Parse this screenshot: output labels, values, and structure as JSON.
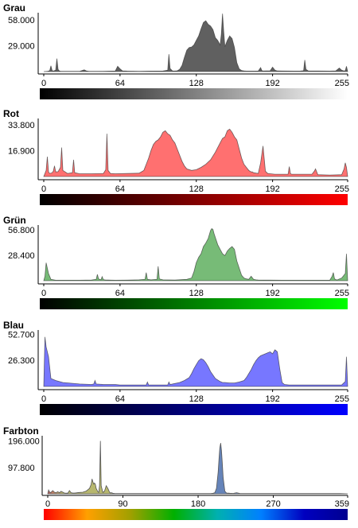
{
  "chart_data": [
    {
      "type": "area",
      "title": "Grau",
      "color": "#606060",
      "gradient": [
        "#000000",
        "#ffffff"
      ],
      "ylabels": [
        "58.000",
        "29.000"
      ],
      "yticks": [
        58000,
        29000
      ],
      "ylim": [
        0,
        66000
      ],
      "xlim": [
        0,
        255
      ],
      "xticks": [
        0,
        64,
        128,
        192,
        255
      ],
      "xtick_labels": [
        "0",
        "64",
        "128",
        "192",
        "255"
      ],
      "x": [
        0,
        3,
        5,
        6,
        7,
        8,
        10,
        11,
        12,
        13,
        14,
        16,
        20,
        30,
        34,
        36,
        38,
        40,
        44,
        50,
        60,
        62,
        64,
        66,
        70,
        80,
        90,
        100,
        104,
        105,
        106,
        108,
        110,
        112,
        114,
        116,
        118,
        120,
        122,
        124,
        126,
        128,
        130,
        132,
        134,
        136,
        138,
        140,
        142,
        144,
        146,
        148,
        149,
        150,
        151,
        152,
        154,
        156,
        158,
        160,
        162,
        164,
        166,
        168,
        170,
        176,
        180,
        182,
        183,
        184,
        190,
        192,
        194,
        196,
        200,
        210,
        215,
        218,
        219,
        220,
        222,
        230,
        240,
        245,
        248,
        250,
        252,
        253,
        254,
        255
      ],
      "values": [
        0,
        300,
        1000,
        6500,
        1200,
        500,
        1500,
        14500,
        2500,
        800,
        400,
        300,
        300,
        300,
        2000,
        600,
        300,
        300,
        300,
        400,
        600,
        6000,
        3000,
        800,
        500,
        400,
        500,
        600,
        1500,
        19500,
        3500,
        800,
        600,
        900,
        2500,
        7000,
        16000,
        24000,
        27000,
        27500,
        30000,
        35000,
        40000,
        48000,
        55000,
        57000,
        53000,
        51000,
        47000,
        38000,
        35000,
        30000,
        42000,
        65000,
        45000,
        28000,
        35000,
        40000,
        37000,
        27000,
        10000,
        3000,
        1200,
        700,
        500,
        500,
        600,
        4500,
        1200,
        600,
        900,
        5000,
        1500,
        700,
        600,
        500,
        500,
        1000,
        13000,
        2500,
        700,
        600,
        500,
        700,
        4000,
        1500,
        700,
        1000,
        6000,
        0
      ]
    },
    {
      "type": "area",
      "title": "Rot",
      "color": "#ff7070",
      "gradient": [
        "#000000",
        "#ff0000"
      ],
      "ylabels": [
        "33.800",
        "16.900"
      ],
      "yticks": [
        33800,
        16900
      ],
      "ylim": [
        0,
        38000
      ],
      "xlim": [
        0,
        255
      ],
      "xticks": [
        0,
        64,
        128,
        192,
        255
      ],
      "xtick_labels": [
        "0",
        "64",
        "128",
        "192",
        "255"
      ],
      "x": [
        0,
        2,
        3,
        4,
        5,
        7,
        8,
        9,
        10,
        12,
        14,
        15,
        16,
        20,
        24,
        25,
        26,
        30,
        40,
        50,
        52,
        53,
        54,
        56,
        60,
        70,
        80,
        84,
        86,
        88,
        90,
        92,
        94,
        96,
        98,
        100,
        102,
        104,
        106,
        108,
        110,
        112,
        114,
        116,
        118,
        120,
        124,
        128,
        132,
        136,
        140,
        144,
        148,
        150,
        152,
        154,
        156,
        158,
        160,
        162,
        164,
        166,
        168,
        170,
        172,
        174,
        175,
        176,
        180,
        182,
        184,
        186,
        188,
        190,
        194,
        200,
        205,
        206,
        207,
        208,
        215,
        225,
        227,
        228,
        230,
        240,
        250,
        252,
        253,
        254,
        255
      ],
      "values": [
        0,
        4000,
        13000,
        3000,
        2000,
        2500,
        3500,
        7000,
        3000,
        3200,
        6000,
        19000,
        4000,
        2000,
        2500,
        11000,
        2500,
        1800,
        1800,
        2000,
        4500,
        28000,
        4000,
        2000,
        1800,
        2000,
        2200,
        4000,
        8000,
        12000,
        17000,
        21000,
        23000,
        24000,
        26000,
        29000,
        30000,
        28000,
        27000,
        24000,
        22000,
        18000,
        14000,
        10000,
        7000,
        5000,
        4000,
        4500,
        6000,
        8000,
        11000,
        16000,
        22000,
        25000,
        26000,
        30000,
        31000,
        29000,
        26000,
        24000,
        18000,
        12000,
        8000,
        6000,
        4000,
        3000,
        3000,
        2500,
        2000,
        9000,
        20000,
        3500,
        2000,
        1800,
        1500,
        1500,
        1500,
        6500,
        1800,
        1500,
        1500,
        1500,
        3500,
        5000,
        1200,
        1000,
        1200,
        5000,
        9000,
        6000,
        0
      ]
    },
    {
      "type": "area",
      "title": "Grün",
      "color": "#77bb77",
      "gradient": [
        "#000000",
        "#00ff00"
      ],
      "ylabels": [
        "56.800",
        "28.400"
      ],
      "yticks": [
        56800,
        28400
      ],
      "ylim": [
        0,
        62000
      ],
      "xlim": [
        0,
        255
      ],
      "xticks": [
        0,
        64,
        128,
        192,
        255
      ],
      "xtick_labels": [
        "0",
        "64",
        "128",
        "192",
        "255"
      ],
      "x": [
        0,
        1,
        2,
        4,
        6,
        10,
        20,
        30,
        40,
        44,
        45,
        46,
        48,
        49,
        50,
        52,
        54,
        56,
        60,
        70,
        80,
        85,
        86,
        87,
        90,
        95,
        96,
        97,
        100,
        110,
        120,
        124,
        126,
        128,
        130,
        132,
        134,
        136,
        138,
        140,
        141,
        142,
        143,
        144,
        146,
        148,
        150,
        152,
        154,
        156,
        158,
        160,
        162,
        164,
        166,
        168,
        170,
        172,
        174,
        176,
        178,
        180,
        190,
        200,
        240,
        242,
        243,
        244,
        246,
        250,
        253,
        254,
        255
      ],
      "values": [
        0,
        5000,
        20000,
        8000,
        1500,
        500,
        500,
        500,
        800,
        1500,
        7000,
        2000,
        1000,
        4500,
        1200,
        800,
        700,
        600,
        500,
        600,
        1000,
        1500,
        9000,
        1500,
        1000,
        1500,
        16000,
        2000,
        1000,
        800,
        1500,
        3000,
        10000,
        20000,
        26000,
        30000,
        38000,
        42000,
        47000,
        56000,
        58000,
        57000,
        52000,
        48000,
        40000,
        35000,
        30000,
        28000,
        33000,
        36000,
        38000,
        35000,
        22000,
        14000,
        6000,
        3000,
        2000,
        1500,
        5000,
        1500,
        1000,
        800,
        600,
        500,
        500,
        5000,
        9000,
        2000,
        800,
        3000,
        8000,
        30000,
        0
      ]
    },
    {
      "type": "area",
      "title": "Blau",
      "color": "#7777ff",
      "gradient": [
        "#000000",
        "#0000ff"
      ],
      "ylabels": [
        "52.700",
        "26.300"
      ],
      "yticks": [
        52700,
        26300
      ],
      "ylim": [
        0,
        57000
      ],
      "xlim": [
        0,
        255
      ],
      "xticks": [
        0,
        64,
        128,
        192,
        255
      ],
      "xtick_labels": [
        "0",
        "64",
        "128",
        "192",
        "255"
      ],
      "x": [
        0,
        1,
        2,
        4,
        6,
        10,
        16,
        30,
        40,
        42,
        43,
        44,
        50,
        60,
        64,
        80,
        86,
        87,
        88,
        90,
        100,
        104,
        105,
        106,
        110,
        114,
        118,
        122,
        124,
        126,
        128,
        130,
        132,
        134,
        136,
        138,
        140,
        144,
        148,
        150,
        152,
        156,
        160,
        164,
        168,
        170,
        172,
        174,
        176,
        178,
        180,
        182,
        184,
        186,
        188,
        190,
        192,
        194,
        196,
        198,
        200,
        202,
        206,
        210,
        220,
        230,
        240,
        250,
        253,
        254,
        255
      ],
      "values": [
        0,
        50000,
        40000,
        30000,
        8000,
        6000,
        4000,
        2500,
        2000,
        2500,
        6000,
        2500,
        2000,
        2000,
        1500,
        1500,
        1500,
        4500,
        1500,
        1500,
        1500,
        1500,
        4500,
        2000,
        3000,
        4000,
        6000,
        9000,
        13000,
        18000,
        22000,
        26000,
        28000,
        27000,
        24000,
        20000,
        15000,
        8000,
        5000,
        4000,
        4000,
        3500,
        3500,
        4500,
        6000,
        9000,
        13000,
        17000,
        22000,
        26000,
        29000,
        31000,
        32000,
        33000,
        34000,
        35000,
        33000,
        37000,
        35000,
        18000,
        4000,
        2000,
        1500,
        1500,
        1500,
        1500,
        1500,
        1500,
        5000,
        30000,
        0
      ]
    },
    {
      "type": "area",
      "title": "Farbton",
      "color": "#b7b76e",
      "color_secondary": "#6688bb",
      "gradient": [
        "#ff0000",
        "#ffa000",
        "#a0a000",
        "#00b000",
        "#00b0b0",
        "#0080ff",
        "#0000c0",
        "#000090"
      ],
      "ylabels": [
        "196.000",
        "97.800"
      ],
      "yticks": [
        196000,
        97800
      ],
      "ylim": [
        0,
        215000
      ],
      "xlim": [
        0,
        359
      ],
      "xticks": [
        0,
        90,
        180,
        270,
        359
      ],
      "xtick_labels": [
        "0",
        "90",
        "180",
        "270",
        "359"
      ],
      "x": [
        0,
        1,
        2,
        3,
        4,
        6,
        8,
        10,
        12,
        14,
        16,
        20,
        24,
        26,
        28,
        30,
        32,
        34,
        38,
        42,
        46,
        48,
        50,
        52,
        53,
        54,
        55,
        56,
        57,
        58,
        60,
        61,
        62,
        63,
        64,
        66,
        68,
        70,
        72,
        74,
        75,
        76,
        78,
        80,
        90,
        100,
        110,
        120,
        130,
        140,
        150,
        160,
        170,
        180,
        185,
        190,
        195,
        198,
        200,
        202,
        204,
        205,
        206,
        207,
        208,
        209,
        210,
        212,
        214,
        218,
        222,
        226,
        230,
        240,
        260,
        280,
        300,
        330,
        350,
        359
      ],
      "values": [
        0,
        14000,
        8000,
        4000,
        6000,
        12000,
        6000,
        4000,
        8000,
        4000,
        9000,
        3000,
        2500,
        12000,
        4000,
        3000,
        3000,
        3500,
        5000,
        6000,
        10000,
        15000,
        20000,
        35000,
        55000,
        45000,
        36000,
        40000,
        35000,
        20000,
        8000,
        5000,
        30000,
        196000,
        30000,
        5000,
        10000,
        30000,
        20000,
        6000,
        3000,
        4000,
        2000,
        1500,
        1000,
        1000,
        1000,
        1000,
        1000,
        1000,
        1000,
        1000,
        1000,
        1000,
        1000,
        1000,
        1000,
        2000,
        4000,
        20000,
        80000,
        130000,
        170000,
        188000,
        160000,
        110000,
        60000,
        10000,
        3000,
        2000,
        1500,
        4000,
        1500,
        1000,
        1000,
        1000,
        1000,
        1000,
        800,
        0
      ]
    }
  ]
}
